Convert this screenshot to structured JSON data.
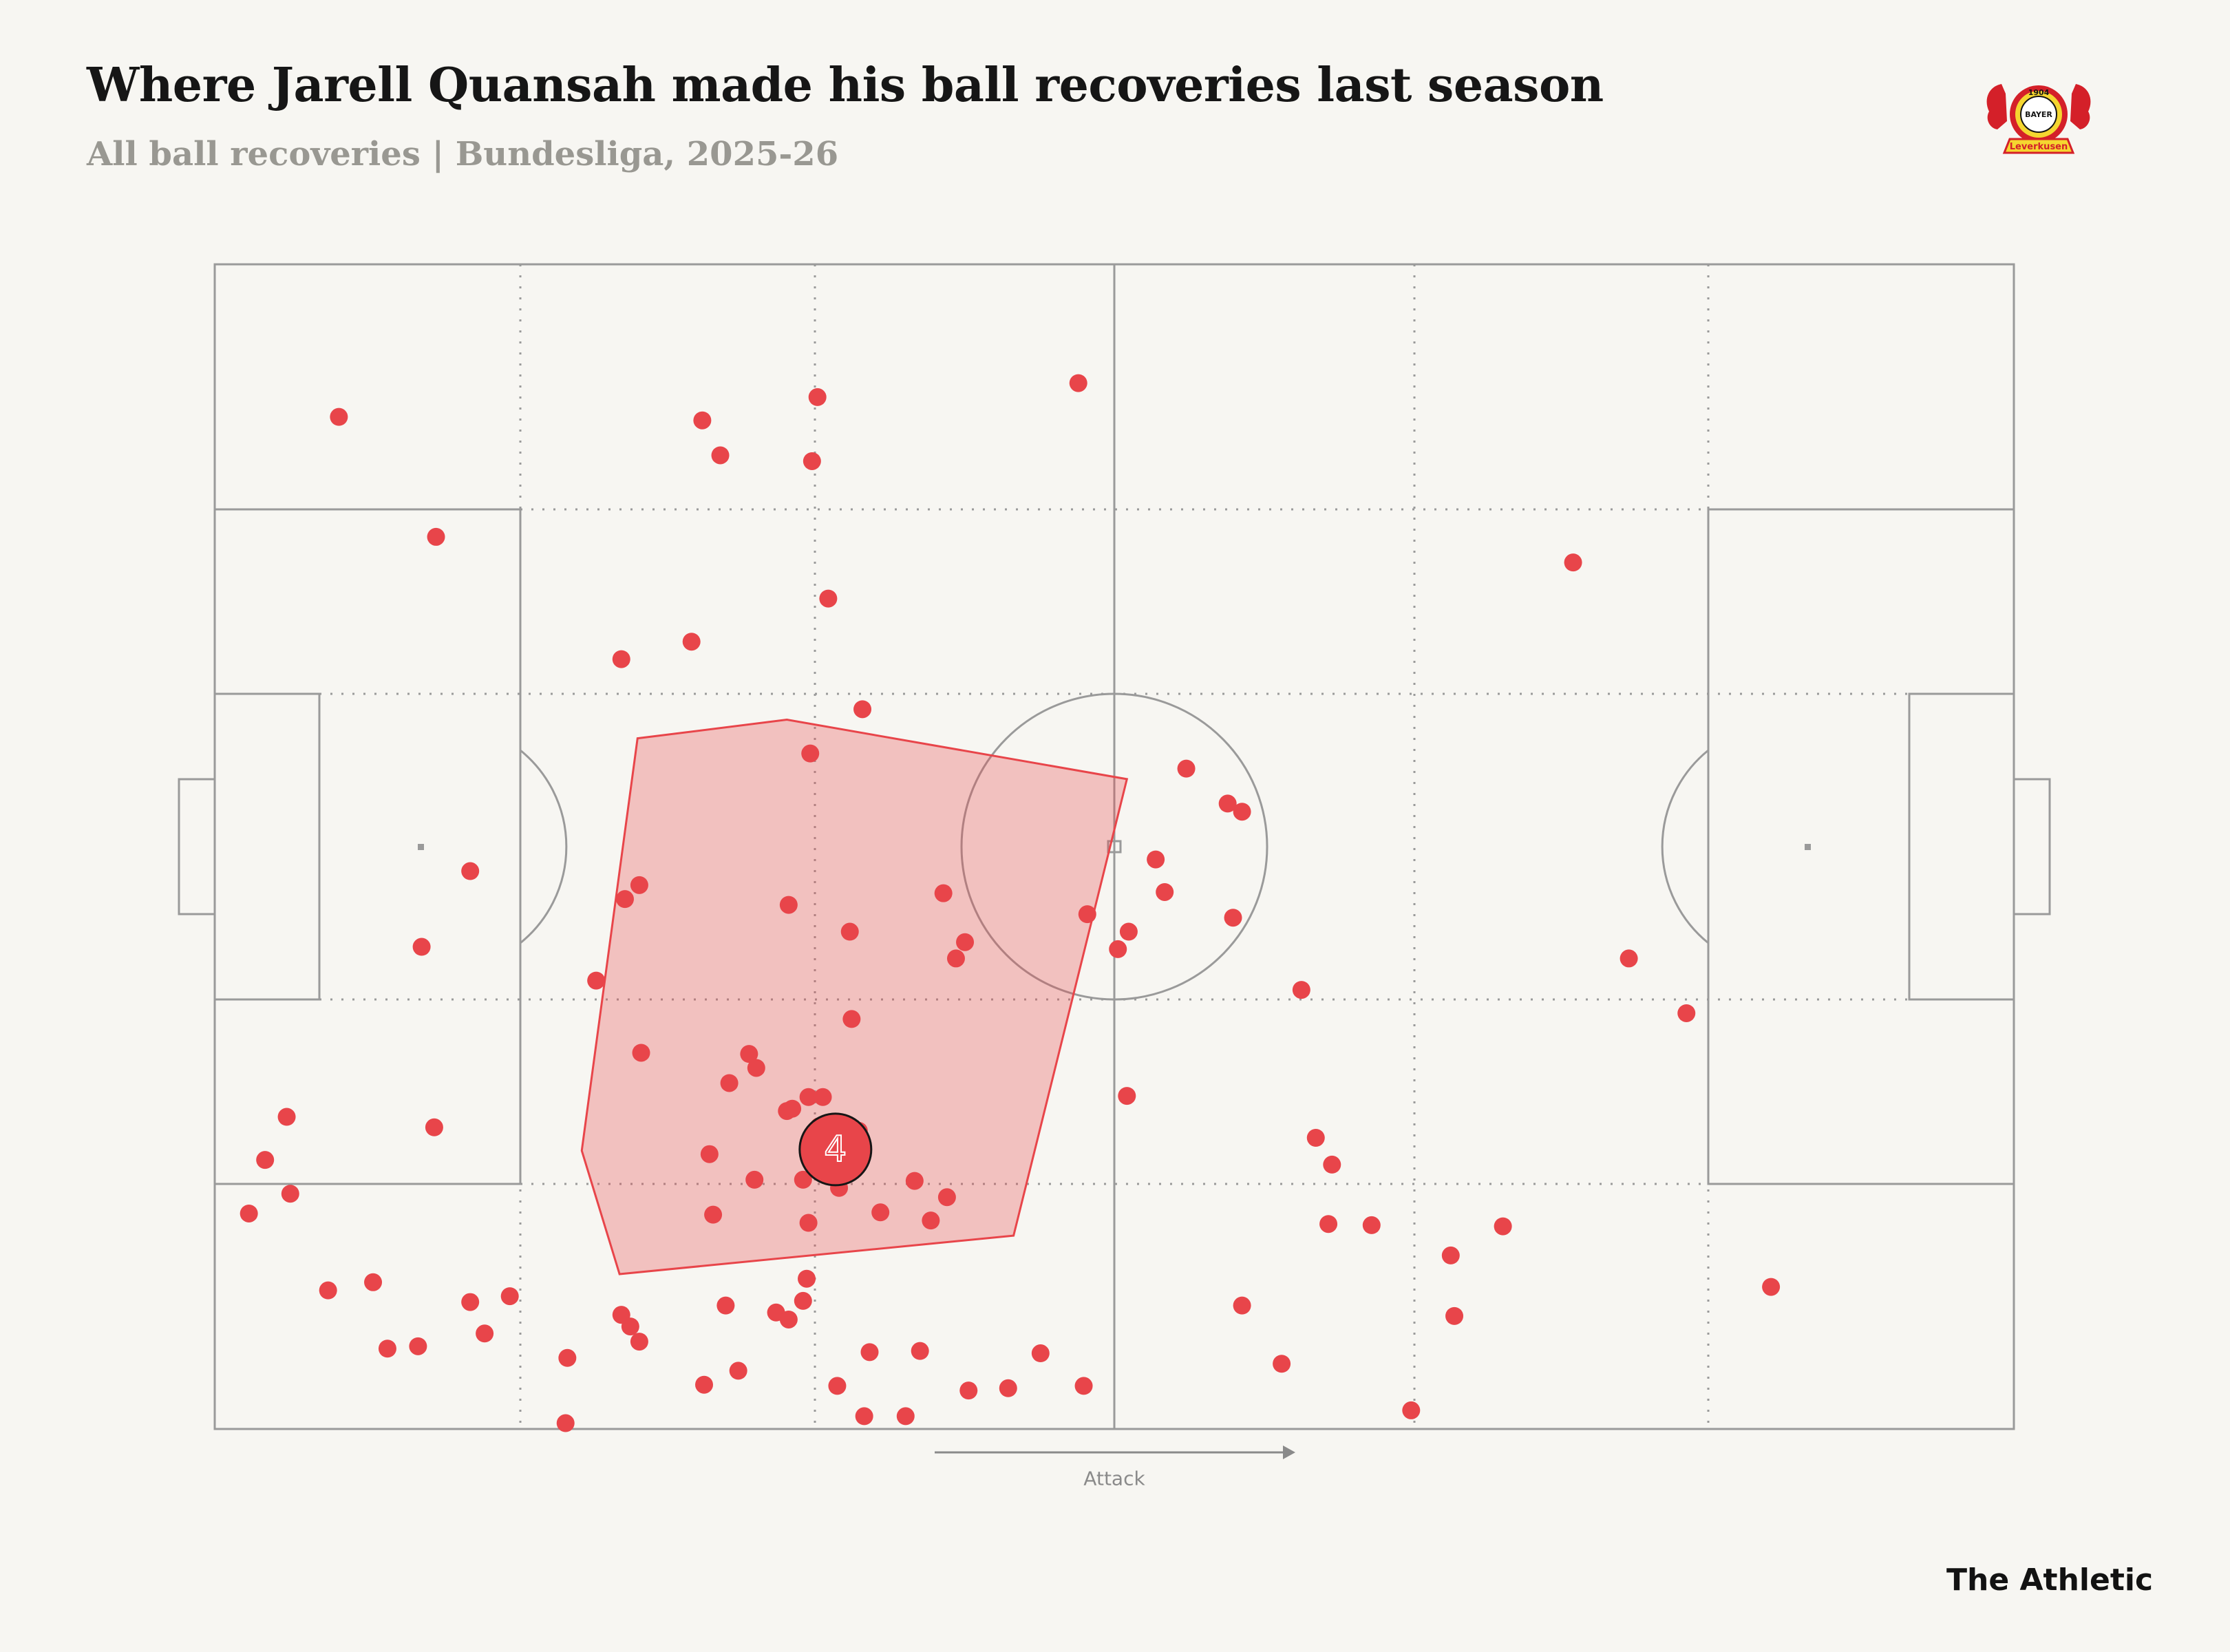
{
  "header": {
    "title": "Where Jarell Quansah made his ball recoveries last season",
    "subtitle": "All ball recoveries | Bundesliga, 2025-26"
  },
  "logo": {
    "year": "1904",
    "name": "BAYER",
    "city": "Leverkusen",
    "colors": {
      "red": "#d42029",
      "yellow": "#f5d630",
      "black": "#141414"
    }
  },
  "pitch": {
    "direction_label": "Attack",
    "line_color": "#9a9a9a",
    "background": "#f7f6f2"
  },
  "chart_data": {
    "type": "scatter",
    "description_units": "pitch coordinates 0-100 (x: own goal to opponent goal, y: top touchline to bottom touchline)",
    "xlim": [
      0,
      100
    ],
    "ylim": [
      0,
      100
    ],
    "point_color": "#e8454a",
    "hull_color": "#e8454a",
    "points": [
      [
        6.9,
        13.1
      ],
      [
        27.1,
        13.4
      ],
      [
        28.1,
        16.4
      ],
      [
        33.2,
        16.9
      ],
      [
        48.0,
        10.2
      ],
      [
        33.5,
        11.4
      ],
      [
        12.3,
        23.4
      ],
      [
        34.1,
        28.7
      ],
      [
        75.5,
        25.6
      ],
      [
        26.5,
        32.4
      ],
      [
        22.6,
        33.9
      ],
      [
        36.0,
        38.2
      ],
      [
        33.1,
        42.0
      ],
      [
        14.2,
        52.1
      ],
      [
        54.0,
        43.3
      ],
      [
        56.3,
        46.3
      ],
      [
        57.1,
        47.0
      ],
      [
        52.3,
        51.1
      ],
      [
        52.8,
        53.9
      ],
      [
        56.6,
        56.1
      ],
      [
        21.2,
        61.5
      ],
      [
        23.6,
        53.3
      ],
      [
        22.8,
        54.5
      ],
      [
        31.9,
        55.0
      ],
      [
        50.8,
        57.3
      ],
      [
        50.2,
        58.8
      ],
      [
        40.5,
        54.0
      ],
      [
        41.7,
        58.2
      ],
      [
        41.2,
        59.6
      ],
      [
        35.3,
        57.3
      ],
      [
        35.4,
        64.8
      ],
      [
        29.7,
        67.8
      ],
      [
        60.4,
        62.3
      ],
      [
        78.6,
        59.6
      ],
      [
        81.8,
        64.3
      ],
      [
        12.2,
        74.1
      ],
      [
        11.5,
        58.6
      ],
      [
        4.0,
        73.2
      ],
      [
        2.8,
        76.9
      ],
      [
        4.2,
        79.8
      ],
      [
        1.9,
        81.5
      ],
      [
        23.7,
        67.7
      ],
      [
        28.6,
        70.3
      ],
      [
        27.5,
        76.4
      ],
      [
        33.0,
        82.3
      ],
      [
        27.7,
        81.6
      ],
      [
        32.7,
        78.6
      ],
      [
        37.0,
        81.4
      ],
      [
        30.0,
        78.6
      ],
      [
        31.8,
        72.7
      ],
      [
        33.6,
        74.0
      ],
      [
        33.1,
        75.2
      ],
      [
        34.6,
        75.1
      ],
      [
        35.8,
        74.4
      ],
      [
        30.1,
        69.0
      ],
      [
        32.1,
        72.5
      ],
      [
        33.0,
        71.5
      ],
      [
        33.8,
        71.5
      ],
      [
        34.7,
        79.3
      ],
      [
        38.9,
        78.7
      ],
      [
        39.8,
        82.1
      ],
      [
        40.7,
        80.1
      ],
      [
        50.7,
        71.4
      ],
      [
        61.2,
        75.0
      ],
      [
        62.1,
        77.3
      ],
      [
        68.7,
        85.1
      ],
      [
        71.6,
        82.6
      ],
      [
        61.9,
        82.4
      ],
      [
        57.1,
        89.4
      ],
      [
        68.9,
        90.3
      ],
      [
        64.3,
        82.5
      ],
      [
        86.5,
        87.8
      ],
      [
        59.3,
        94.4
      ],
      [
        66.5,
        98.4
      ],
      [
        23.1,
        91.2
      ],
      [
        22.6,
        90.2
      ],
      [
        23.6,
        92.5
      ],
      [
        28.4,
        89.4
      ],
      [
        32.7,
        89.0
      ],
      [
        31.2,
        90.0
      ],
      [
        31.9,
        90.6
      ],
      [
        32.9,
        87.1
      ],
      [
        36.4,
        93.4
      ],
      [
        34.6,
        96.3
      ],
      [
        29.1,
        95.0
      ],
      [
        27.2,
        96.2
      ],
      [
        36.1,
        98.9
      ],
      [
        38.4,
        98.9
      ],
      [
        41.9,
        96.7
      ],
      [
        44.1,
        96.5
      ],
      [
        45.9,
        93.5
      ],
      [
        39.2,
        93.3
      ],
      [
        11.3,
        92.9
      ],
      [
        14.2,
        89.1
      ],
      [
        15.0,
        91.8
      ],
      [
        19.6,
        93.9
      ],
      [
        16.4,
        88.6
      ],
      [
        8.8,
        87.4
      ],
      [
        6.3,
        88.1
      ],
      [
        9.6,
        93.1
      ],
      [
        19.5,
        99.5
      ],
      [
        48.3,
        96.3
      ],
      [
        48.5,
        55.8
      ]
    ],
    "hull": [
      [
        23.5,
        40.7
      ],
      [
        31.8,
        39.1
      ],
      [
        50.7,
        44.2
      ],
      [
        44.4,
        83.4
      ],
      [
        22.5,
        86.7
      ],
      [
        20.4,
        76.1
      ]
    ],
    "average_position": {
      "x": 34.5,
      "y": 76.0,
      "label": "4"
    }
  },
  "footer": {
    "brand": "The Athletic"
  }
}
